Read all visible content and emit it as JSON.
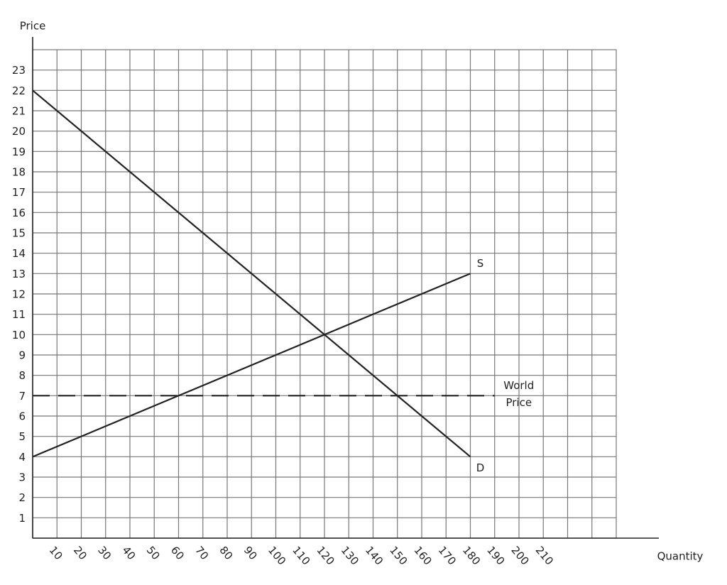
{
  "chart_data": {
    "type": "line",
    "x_label": "Quantity",
    "y_label": "Price",
    "xlim": [
      0,
      240
    ],
    "ylim": [
      0,
      24
    ],
    "xticks": [
      10,
      20,
      30,
      40,
      50,
      60,
      70,
      80,
      90,
      100,
      110,
      120,
      130,
      140,
      150,
      160,
      170,
      180,
      190,
      200,
      210
    ],
    "yticks": [
      1,
      2,
      3,
      4,
      5,
      6,
      7,
      8,
      9,
      10,
      11,
      12,
      13,
      14,
      15,
      16,
      17,
      18,
      19,
      20,
      21,
      22,
      23
    ],
    "grid": true,
    "series": [
      {
        "name": "D",
        "color": "#222222",
        "dashed": false,
        "x": [
          0,
          180
        ],
        "values": [
          22,
          4
        ]
      },
      {
        "name": "S",
        "color": "#222222",
        "dashed": false,
        "x": [
          0,
          180
        ],
        "values": [
          4,
          13
        ]
      },
      {
        "name": "World Price",
        "color": "#222222",
        "dashed": true,
        "x": [
          0,
          190
        ],
        "values": [
          7,
          7
        ]
      }
    ]
  }
}
